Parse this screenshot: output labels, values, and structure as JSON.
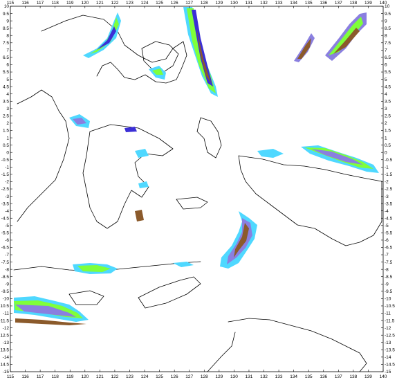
{
  "map": {
    "lon_ticks": [
      "115",
      "116",
      "117",
      "118",
      "119",
      "120",
      "121",
      "122",
      "123",
      "124",
      "125",
      "126",
      "127",
      "128",
      "129",
      "130",
      "131",
      "132",
      "133",
      "134",
      "135",
      "136",
      "137",
      "138",
      "139",
      "140"
    ],
    "lat_ticks": [
      "10",
      "9.5",
      "9",
      "8.5",
      "8",
      "7.5",
      "7",
      "6.5",
      "6",
      "5.5",
      "5",
      "4.5",
      "4",
      "3.5",
      "3",
      "2.5",
      "2",
      "1.5",
      "1",
      "0.5",
      "0",
      "-0.5",
      "-1",
      "-1.5",
      "-2",
      "-2.5",
      "-3",
      "-3.5",
      "-4",
      "-4.5",
      "-5",
      "-5.5",
      "-6",
      "-6.5",
      "-7",
      "-7.5",
      "-8",
      "-8.5",
      "-9",
      "-9.5",
      "-10",
      "-10.5",
      "-11",
      "-11.5",
      "-12",
      "-12.5",
      "-13",
      "-13.5",
      "-14",
      "-14.5",
      "-15"
    ],
    "lon_range": [
      115,
      140
    ],
    "lat_range": [
      -15,
      10
    ],
    "colors": {
      "outer": "#4fd8ff",
      "band2": "#7fff3a",
      "band3": "#8a7fe0",
      "band4": "#3b2fd6",
      "core": "#8b5a2b",
      "coast": "#000000"
    }
  }
}
